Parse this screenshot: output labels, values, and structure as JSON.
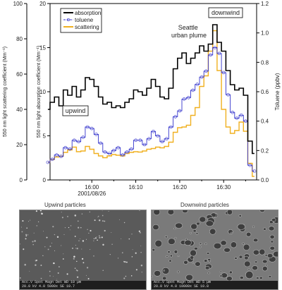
{
  "chart_data": {
    "type": "line",
    "x": [
      "15:50",
      "15:51",
      "15:52",
      "15:53",
      "15:54",
      "15:55",
      "15:56",
      "15:57",
      "15:58",
      "15:59",
      "16:00",
      "16:01",
      "16:02",
      "16:03",
      "16:04",
      "16:05",
      "16:06",
      "16:07",
      "16:08",
      "16:09",
      "16:10",
      "16:11",
      "16:12",
      "16:13",
      "16:14",
      "16:15",
      "16:16",
      "16:17",
      "16:18",
      "16:19",
      "16:20",
      "16:21",
      "16:22",
      "16:23",
      "16:24",
      "16:25",
      "16:26",
      "16:27",
      "16:28",
      "16:29",
      "16:30",
      "16:31",
      "16:32",
      "16:33",
      "16:34",
      "16:35",
      "16:36",
      "16:37"
    ],
    "series": [
      {
        "name": "absorption",
        "axis": "absorption",
        "color": "#000000",
        "values": [
          8,
          8.8,
          9.4,
          8.4,
          10.2,
          9.6,
          10.6,
          9.4,
          10.2,
          11.6,
          11.4,
          10.6,
          9.4,
          8.6,
          8.8,
          8.2,
          8.4,
          8.2,
          8.8,
          9.2,
          10.2,
          10,
          9.6,
          10.4,
          11.4,
          10.6,
          9.4,
          9.2,
          10.4,
          12.6,
          13.8,
          14.4,
          13.2,
          13.8,
          14.4,
          15.2,
          14.6,
          15.4,
          17.6,
          15.6,
          14.6,
          12.4,
          10.8,
          10.2,
          10.4,
          9.6,
          4.4,
          3
        ]
      },
      {
        "name": "toluene",
        "axis": "toluene",
        "color": "#3333cc",
        "values": [
          0.12,
          0.14,
          0.17,
          0.16,
          0.22,
          0.21,
          0.27,
          0.26,
          0.29,
          0.36,
          0.35,
          0.31,
          0.25,
          0.19,
          0.18,
          0.2,
          0.22,
          0.17,
          0.19,
          0.21,
          0.27,
          0.27,
          0.24,
          0.28,
          0.33,
          0.3,
          0.26,
          0.28,
          0.36,
          0.43,
          0.47,
          0.55,
          0.56,
          0.61,
          0.65,
          0.7,
          0.74,
          0.85,
          0.9,
          0.86,
          0.73,
          0.58,
          0.46,
          0.42,
          0.44,
          0.4,
          0.1,
          0.06
        ]
      },
      {
        "name": "scattering",
        "axis": "scattering",
        "color": "#f0b020",
        "values": [
          10,
          11.6,
          13,
          13.4,
          15.6,
          17,
          18.6,
          16,
          16.4,
          19,
          17.4,
          15,
          13.6,
          12.6,
          13.6,
          14.4,
          14,
          13.6,
          15,
          15.6,
          16,
          15.8,
          16.4,
          17.4,
          17.8,
          18.6,
          18.2,
          19,
          21.4,
          27,
          29.6,
          30,
          31,
          36.6,
          41,
          53,
          59,
          73,
          84.6,
          62,
          40,
          30,
          26.4,
          28,
          32.8,
          27.6,
          9.4,
          2
        ]
      }
    ],
    "axes": {
      "absorption": {
        "label": "550 nm light absorption coefficient (Mm⁻¹)",
        "range": [
          0,
          20
        ],
        "ticks": [
          0,
          5,
          10,
          15,
          20
        ],
        "position": "left-inner"
      },
      "scattering": {
        "label": "550 nm light scattering coefficient (Mm⁻¹)",
        "range": [
          0,
          100
        ],
        "ticks": [
          0,
          20,
          40,
          60,
          80,
          100
        ],
        "position": "left-outer"
      },
      "toluene": {
        "label": "Toluene (ppbv)",
        "range": [
          0,
          1.2
        ],
        "ticks": [
          "0.0",
          "0.2",
          "0.4",
          "0.6",
          "0.8",
          "1.0",
          "1.2"
        ],
        "position": "right"
      }
    },
    "xaxis": {
      "ticks": [
        "16:00",
        "16:10",
        "16:20",
        "16:30"
      ],
      "date_label": "2001/08/26",
      "range_minutes": [
        -9.5,
        37.5
      ]
    },
    "legend": {
      "position": "top-left",
      "entries": [
        "absorption",
        "toluene",
        "scattering"
      ]
    },
    "annotations": {
      "upwind": "upwind",
      "downwind": "downwind",
      "plume": "Seattle\nurban plume"
    },
    "grid": false
  },
  "images": {
    "upwind": {
      "caption": "Upwind particles",
      "meta": "Acc.V  Spot Magn   Det  WD     10 µm\n20.0 kV 4.0  5000x   SE   10.7"
    },
    "downwind": {
      "caption": "Downwind particles",
      "meta": "Acc.V  Spot Magn   Det  WD      5 µm\n20.0 kV 4.0  10000x  SE   10.8"
    }
  }
}
